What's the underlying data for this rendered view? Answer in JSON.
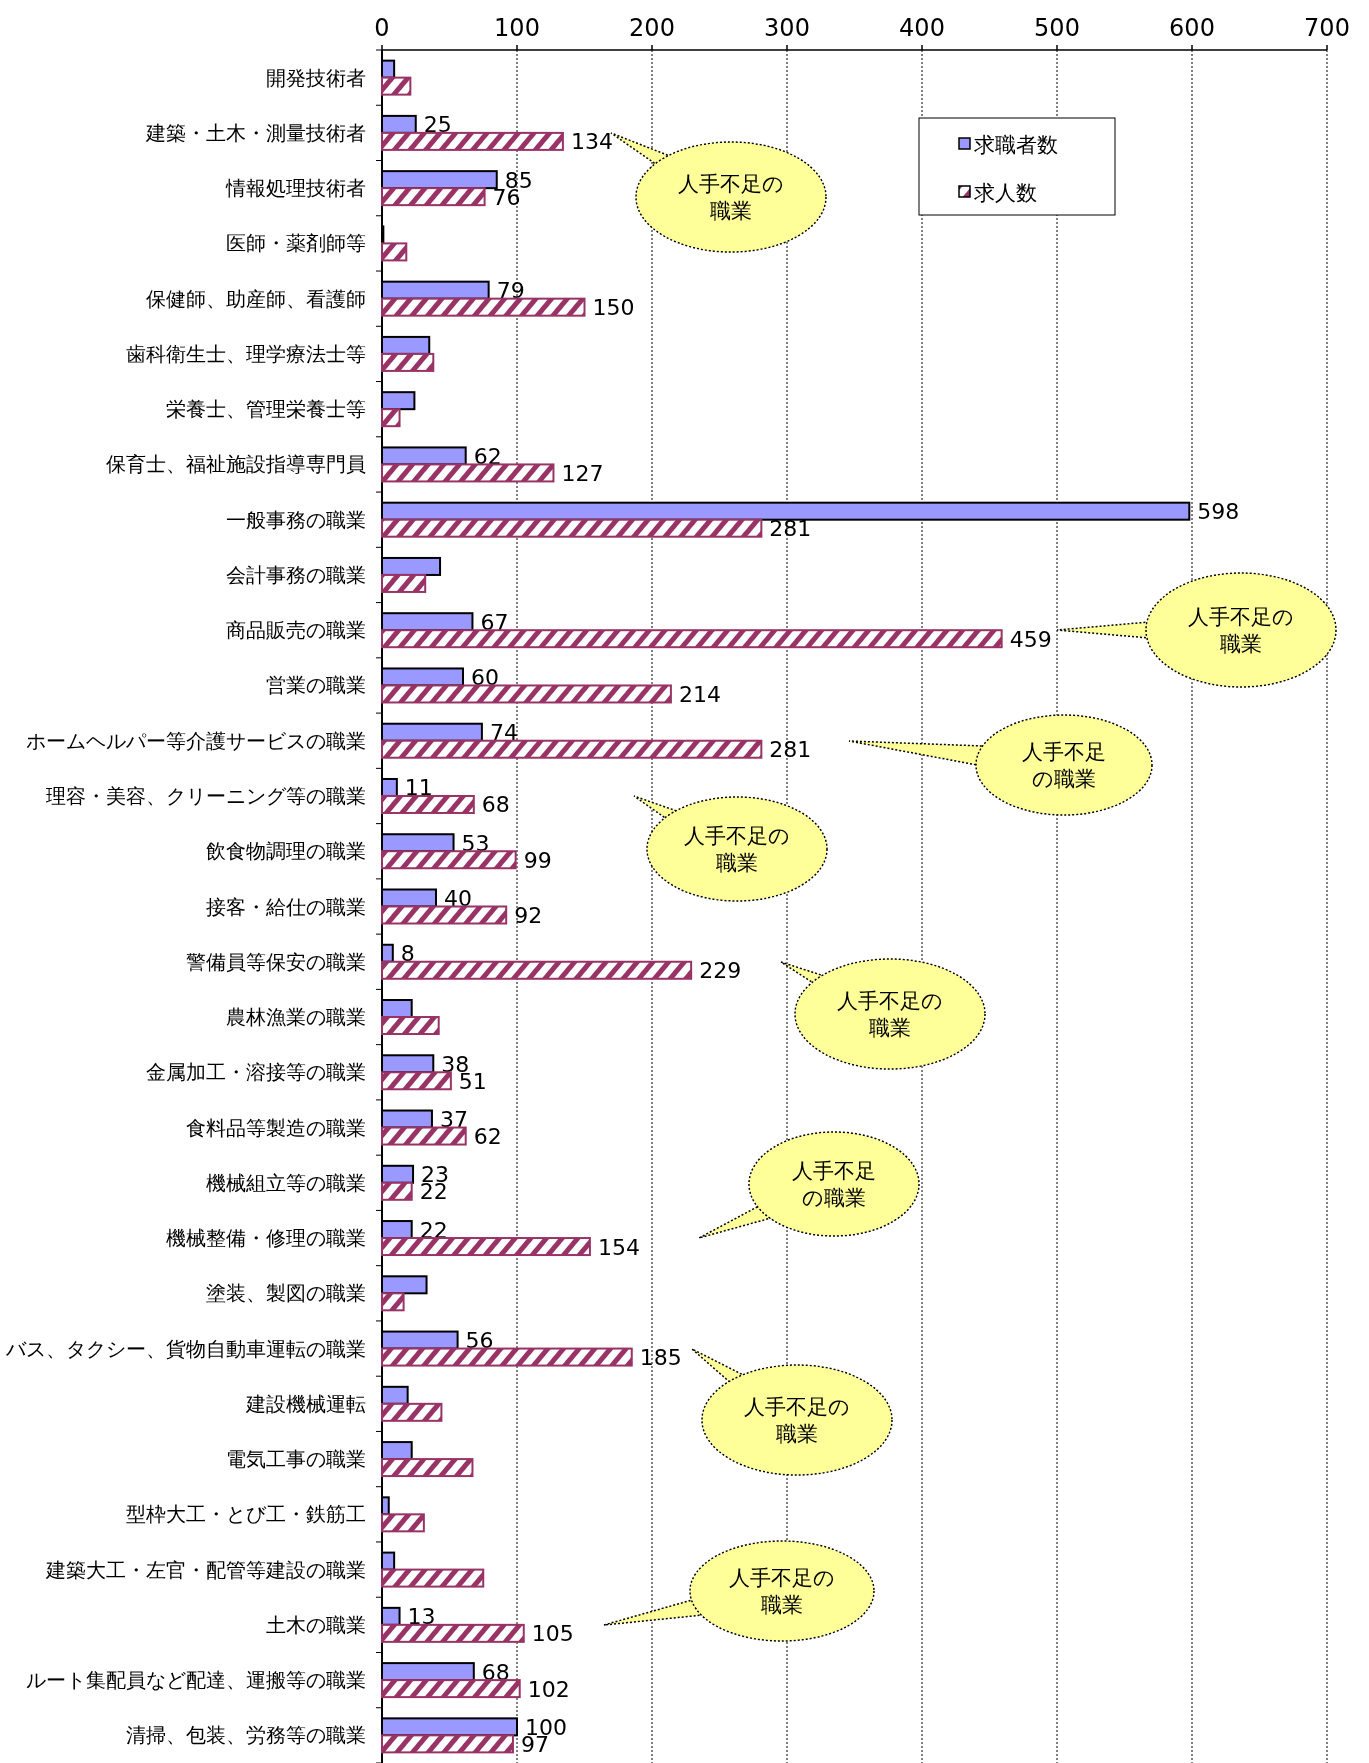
{
  "chart_data": {
    "type": "bar",
    "orientation": "horizontal",
    "categories": [
      "開発技術者",
      "建築・土木・測量技術者",
      "情報処理技術者",
      "医師・薬剤師等",
      "保健師、助産師、看護師",
      "歯科衛生士、理学療法士等",
      "栄養士、管理栄養士等",
      "保育士、福祉施設指導専門員",
      "一般事務の職業",
      "会計事務の職業",
      "商品販売の職業",
      "営業の職業",
      "ホームヘルパー等介護サービスの職業",
      "理容・美容、クリーニング等の職業",
      "飲食物調理の職業",
      "接客・給仕の職業",
      "警備員等保安の職業",
      "農林漁業の職業",
      "金属加工・溶接等の職業",
      "食料品等製造の職業",
      "機械組立等の職業",
      "機械整備・修理の職業",
      "塗装、製図の職業",
      "バス、タクシー、貨物自動車運転の職業",
      "建設機械運転",
      "電気工事の職業",
      "型枠大工・とび工・鉄筋工",
      "建築大工・左官・配管等建設の職業",
      "土木の職業",
      "ルート集配員など配達、運搬等の職業",
      "清掃、包装、労務等の職業"
    ],
    "series": [
      {
        "name": "求職者数",
        "color": "#9999ff",
        "values": [
          9,
          25,
          85,
          1,
          79,
          35,
          24,
          62,
          598,
          43,
          67,
          60,
          74,
          11,
          53,
          40,
          8,
          22,
          38,
          37,
          23,
          22,
          33,
          56,
          19,
          22,
          5,
          9,
          13,
          68,
          100
        ],
        "value_labels": [
          null,
          "25",
          "85",
          null,
          "79",
          null,
          null,
          "62",
          "598",
          null,
          "67",
          "60",
          "74",
          "11",
          "53",
          "40",
          "8",
          null,
          "38",
          "37",
          "23",
          "22",
          null,
          "56",
          null,
          null,
          null,
          null,
          "13",
          "68",
          "100"
        ]
      },
      {
        "name": "求人数",
        "color": "#993366",
        "values": [
          21,
          134,
          76,
          18,
          150,
          38,
          13,
          127,
          281,
          32,
          459,
          214,
          281,
          68,
          99,
          92,
          229,
          42,
          51,
          62,
          22,
          154,
          16,
          185,
          44,
          67,
          31,
          75,
          105,
          102,
          97
        ],
        "value_labels": [
          null,
          "134",
          "76",
          null,
          "150",
          null,
          null,
          "127",
          "281",
          null,
          "459",
          "214",
          "281",
          "68",
          "99",
          "92",
          "229",
          null,
          "51",
          "62",
          "22",
          "154",
          null,
          "185",
          null,
          null,
          null,
          null,
          "105",
          "102",
          "97"
        ]
      }
    ],
    "xlim": [
      0,
      700
    ],
    "xticks": [
      0,
      100,
      200,
      300,
      400,
      500,
      600,
      700
    ],
    "grid": "x",
    "legend": "top right",
    "annotations": [
      "人手不足の職業",
      "人手不足の職業",
      "人手不足の職業",
      "人手不足の職業",
      "人手不足の職業",
      "人手不足の職業",
      "人手不足の職業",
      "人手不足の職業"
    ]
  }
}
